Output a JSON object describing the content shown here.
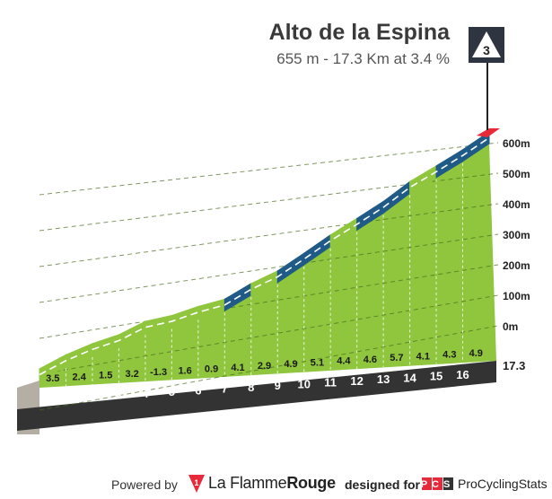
{
  "climb": {
    "name": "Alto de la Espina",
    "subtitle": "655 m - 17.3 Km at 3.4 %",
    "category": "3"
  },
  "colors": {
    "green": "#8fc63d",
    "green_dark": "#6fa82a",
    "blue": "#1f5b86",
    "red": "#e8293a",
    "base_band": "#333333",
    "side_wall": "#b5aea4"
  },
  "chart_data": {
    "type": "area",
    "title": "Alto de la Espina",
    "subtitle": "655 m - 17.3 Km at 3.4 %",
    "km_markers": [
      "1",
      "2",
      "3",
      "4",
      "5",
      "6",
      "7",
      "8",
      "9",
      "10",
      "11",
      "12",
      "13",
      "14",
      "15",
      "16"
    ],
    "total_distance_label": "17.3",
    "gradients": [
      "3.5",
      "2.4",
      "1.5",
      "3.2",
      "-1.3",
      "1.6",
      "0.9",
      "4.1",
      "2.9",
      "4.9",
      "5.1",
      "4.4",
      "4.6",
      "5.7",
      "4.1",
      "4.3",
      "4.9"
    ],
    "gradient_values": [
      3.5,
      2.4,
      1.5,
      3.2,
      -1.3,
      1.6,
      0.9,
      4.1,
      2.9,
      4.9,
      5.1,
      4.4,
      4.6,
      5.7,
      4.1,
      4.3,
      4.9
    ],
    "segment_colors": [
      "green",
      "green",
      "green",
      "green",
      "green",
      "green",
      "green",
      "blue",
      "green",
      "blue",
      "blue",
      "green",
      "blue",
      "blue",
      "green",
      "blue",
      "blue"
    ],
    "summit_segment_color": "red",
    "yaxis_ticks": [
      "0m",
      "100m",
      "200m",
      "300m",
      "400m",
      "500m",
      "600m"
    ],
    "ylim": [
      0,
      655
    ],
    "grid": true
  },
  "footer": {
    "powered_by": "Powered by",
    "brand_light": "La Flamme",
    "brand_bold": "Rouge",
    "brand_icon_digit": "1",
    "designed_for": "designed for",
    "pcs_badge": "PCS",
    "pcs_name": "ProCyclingStats"
  }
}
